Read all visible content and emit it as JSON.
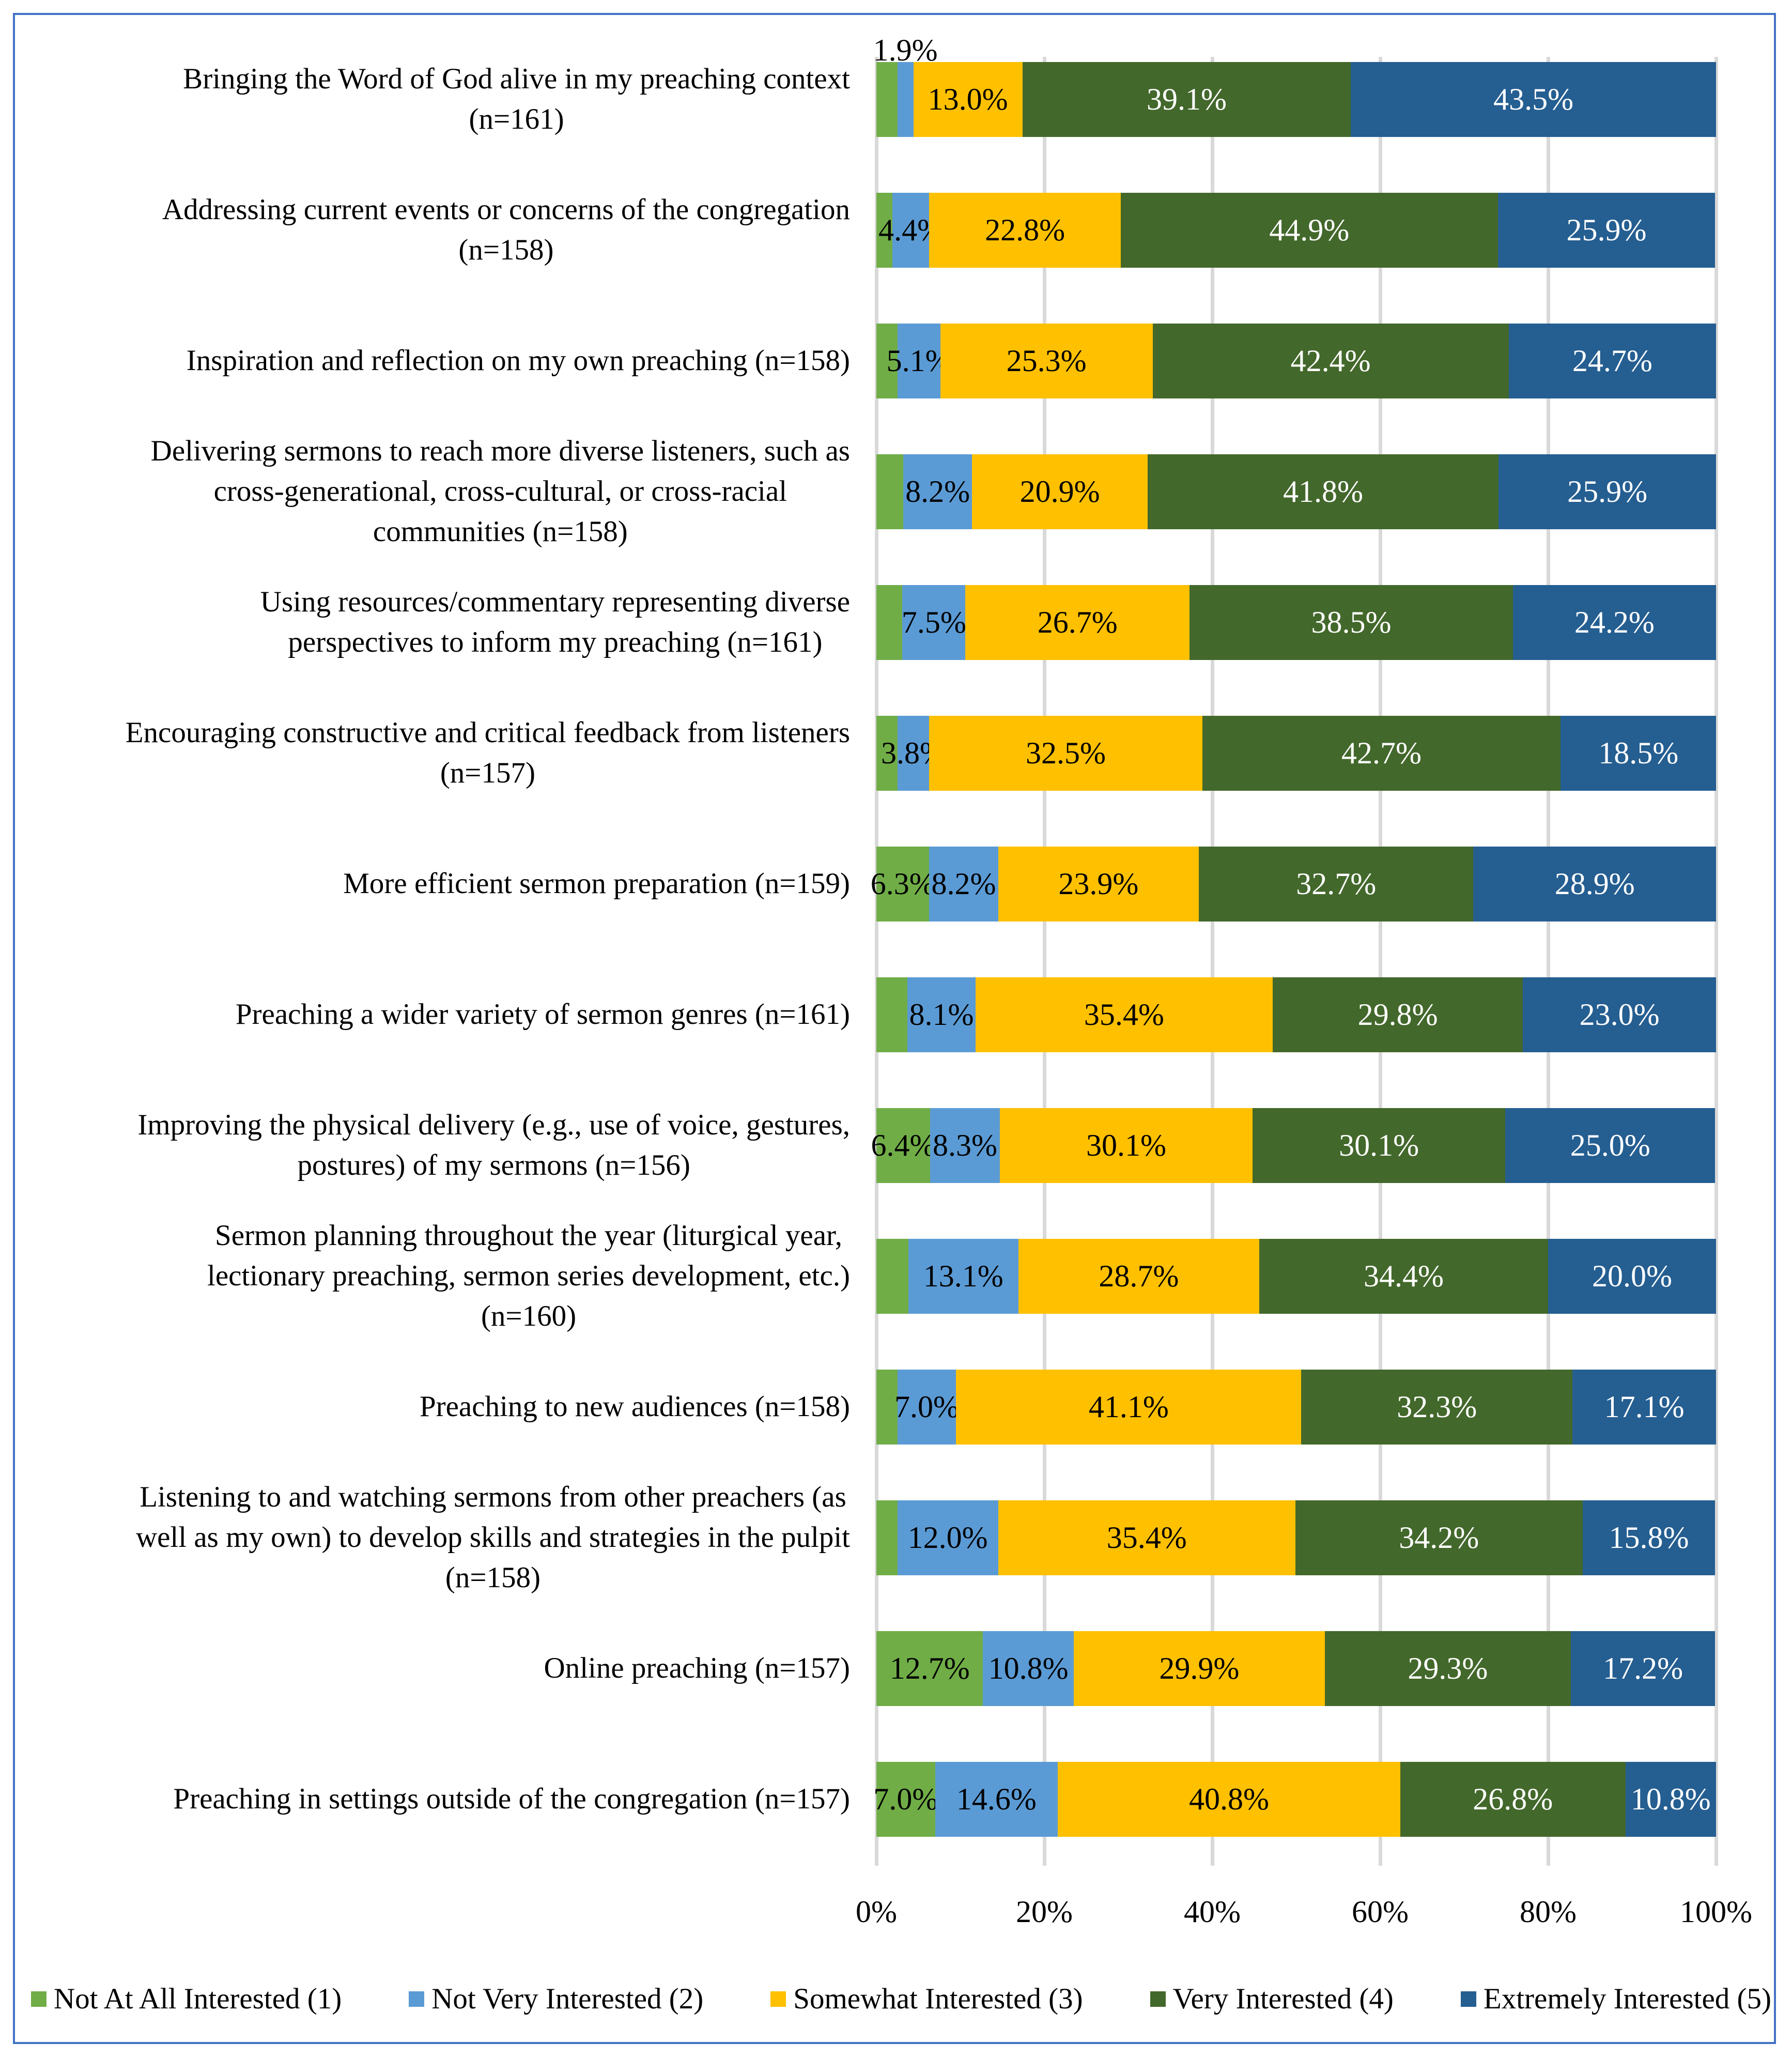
{
  "chart_data": {
    "type": "bar",
    "orientation": "horizontal",
    "stacked": "percent",
    "title": "",
    "xlabel": "",
    "ylabel": "",
    "xlim": [
      0,
      100
    ],
    "x_ticks": [
      "0%",
      "20%",
      "40%",
      "60%",
      "80%",
      "100%"
    ],
    "grid": true,
    "legend_position": "bottom",
    "categories": [
      "Bringing the Word of God alive in my preaching context\n(n=161)",
      "Addressing current events or concerns of the congregation\n(n=158)",
      "Inspiration and reflection on my own preaching (n=158)",
      "Delivering sermons to reach more diverse listeners, such as\ncross-generational, cross-cultural, or cross-racial\ncommunities (n=158)",
      "Using resources/commentary representing diverse\nperspectives to inform my preaching (n=161)",
      "Encouraging constructive and critical feedback from listeners\n(n=157)",
      "More efficient sermon preparation (n=159)",
      "Preaching a wider variety of sermon genres (n=161)",
      "Improving the physical delivery (e.g., use of voice, gestures,\npostures) of my sermons (n=156)",
      "Sermon planning throughout the year (liturgical year,\nlectionary preaching, sermon series development, etc.)\n(n=160)",
      "Preaching to new audiences (n=158)",
      "Listening to and watching sermons from other preachers (as\nwell as my own) to develop skills and strategies in the pulpit\n(n=158)",
      "Online preaching (n=157)",
      "Preaching in settings outside of the congregation (n=157)"
    ],
    "series": [
      {
        "name": "Not At All Interested (1)",
        "color": "#70ad47",
        "label_color": "#000000",
        "values": [
          2.5,
          1.9,
          2.5,
          3.2,
          3.1,
          2.5,
          6.3,
          3.7,
          6.4,
          3.8,
          2.5,
          2.5,
          12.7,
          7.0
        ],
        "labels": [
          null,
          null,
          null,
          null,
          null,
          null,
          "6.3%",
          null,
          "6.4%",
          null,
          null,
          null,
          "12.7%",
          "7.0%"
        ]
      },
      {
        "name": "Not Very Interested (2)",
        "color": "#5b9bd5",
        "label_color": "#000000",
        "values": [
          1.9,
          4.4,
          5.1,
          8.2,
          7.5,
          3.8,
          8.2,
          8.1,
          8.3,
          13.1,
          7.0,
          12.0,
          10.8,
          14.6
        ],
        "labels": [
          "1.9%",
          "4.4%",
          "5.1%",
          "8.2%",
          "7.5%",
          "3.8%",
          "8.2%",
          "8.1%",
          "8.3%",
          "13.1%",
          "7.0%",
          "12.0%",
          "10.8%",
          "14.6%"
        ]
      },
      {
        "name": "Somewhat Interested (3)",
        "color": "#ffc000",
        "label_color": "#000000",
        "values": [
          13.0,
          22.8,
          25.3,
          20.9,
          26.7,
          32.5,
          23.9,
          35.4,
          30.1,
          28.7,
          41.1,
          35.4,
          29.9,
          40.8
        ],
        "labels": [
          "13.0%",
          "22.8%",
          "25.3%",
          "20.9%",
          "26.7%",
          "32.5%",
          "23.9%",
          "35.4%",
          "30.1%",
          "28.7%",
          "41.1%",
          "35.4%",
          "29.9%",
          "40.8%"
        ]
      },
      {
        "name": "Very Interested (4)",
        "color": "#43682b",
        "label_color": "#ffffff",
        "values": [
          39.1,
          44.9,
          42.4,
          41.8,
          38.5,
          42.7,
          32.7,
          29.8,
          30.1,
          34.4,
          32.3,
          34.2,
          29.3,
          26.8
        ],
        "labels": [
          "39.1%",
          "44.9%",
          "42.4%",
          "41.8%",
          "38.5%",
          "42.7%",
          "32.7%",
          "29.8%",
          "30.1%",
          "34.4%",
          "32.3%",
          "34.2%",
          "29.3%",
          "26.8%"
        ]
      },
      {
        "name": "Extremely Interested (5)",
        "color": "#255e91",
        "label_color": "#ffffff",
        "values": [
          43.5,
          25.9,
          24.7,
          25.9,
          24.2,
          18.5,
          28.9,
          23.0,
          25.0,
          20.0,
          17.1,
          15.8,
          17.2,
          10.8
        ],
        "labels": [
          "43.5%",
          "25.9%",
          "24.7%",
          "25.9%",
          "24.2%",
          "18.5%",
          "28.9%",
          "23.0%",
          "25.0%",
          "20.0%",
          "17.1%",
          "15.8%",
          "17.2%",
          "10.8%"
        ]
      }
    ]
  }
}
